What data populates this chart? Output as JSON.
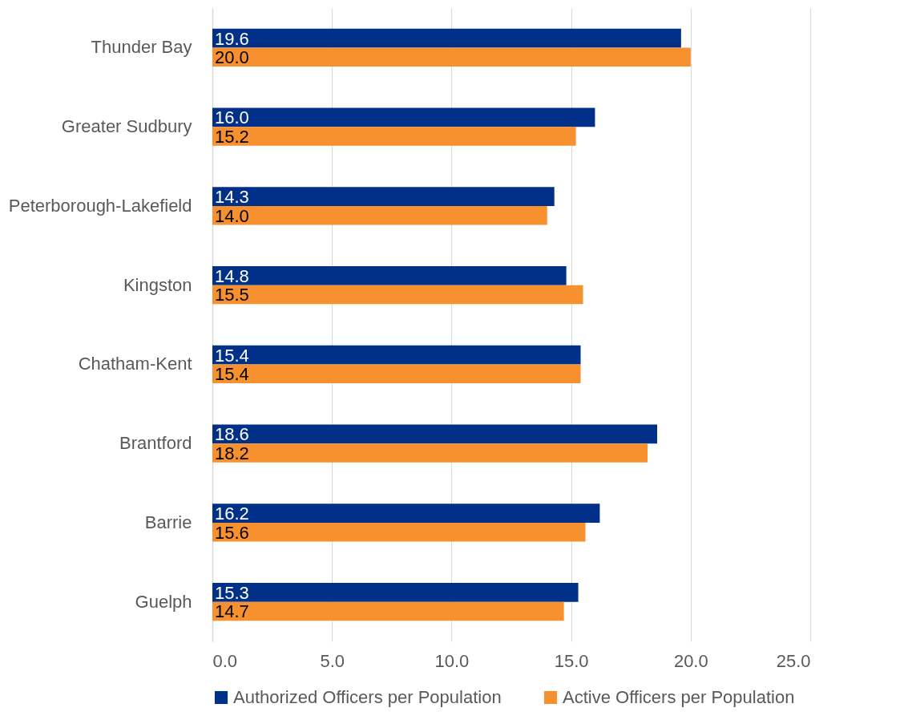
{
  "chart_data": {
    "type": "bar",
    "orientation": "horizontal",
    "categories": [
      "Thunder Bay",
      "Greater Sudbury",
      "Peterborough-Lakefield",
      "Kingston",
      "Chatham-Kent",
      "Brantford",
      "Barrie",
      "Guelph"
    ],
    "series": [
      {
        "name": "Authorized Officers per Population",
        "color": "#003087",
        "values": [
          19.6,
          16.0,
          14.3,
          14.8,
          15.4,
          18.6,
          16.2,
          15.3
        ],
        "value_labels": [
          "19.6",
          "16.0",
          "14.3",
          "14.8",
          "15.4",
          "18.6",
          "16.2",
          "15.3"
        ]
      },
      {
        "name": "Active Officers per Population",
        "color": "#f7902f",
        "values": [
          20.0,
          15.2,
          14.0,
          15.5,
          15.4,
          18.2,
          15.6,
          14.7
        ],
        "value_labels": [
          "20.0",
          "15.2",
          "14.0",
          "15.5",
          "15.4",
          "18.2",
          "15.6",
          "14.7"
        ]
      }
    ],
    "xlim": [
      0,
      25
    ],
    "xticks": [
      {
        "value": 0,
        "label": "0.0"
      },
      {
        "value": 5,
        "label": "5.0"
      },
      {
        "value": 10,
        "label": "10.0"
      },
      {
        "value": 15,
        "label": "15.0"
      },
      {
        "value": 20,
        "label": "20.0"
      },
      {
        "value": 25,
        "label": "25.0"
      }
    ],
    "grid": "x",
    "legend": "bottom"
  }
}
